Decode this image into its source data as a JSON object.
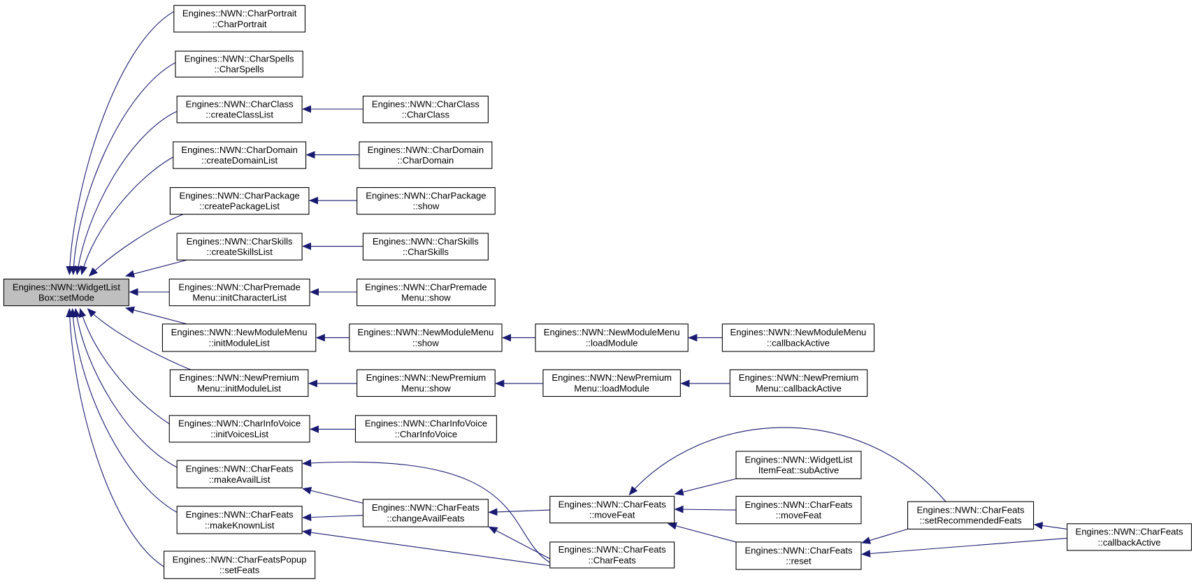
{
  "nodes": [
    {
      "lines": [
        "Engines::NWN::WidgetList",
        "Box::setMode"
      ]
    },
    {
      "lines": [
        "Engines::NWN::CharPortrait",
        "::CharPortrait"
      ]
    },
    {
      "lines": [
        "Engines::NWN::CharSpells",
        "::CharSpells"
      ]
    },
    {
      "lines": [
        "Engines::NWN::CharClass",
        "::createClassList"
      ]
    },
    {
      "lines": [
        "Engines::NWN::CharDomain",
        "::createDomainList"
      ]
    },
    {
      "lines": [
        "Engines::NWN::CharPackage",
        "::createPackageList"
      ]
    },
    {
      "lines": [
        "Engines::NWN::CharSkills",
        "::createSkillsList"
      ]
    },
    {
      "lines": [
        "Engines::NWN::CharPremade",
        "Menu::initCharacterList"
      ]
    },
    {
      "lines": [
        "Engines::NWN::NewModuleMenu",
        "::initModuleList"
      ]
    },
    {
      "lines": [
        "Engines::NWN::NewPremium",
        "Menu::initModuleList"
      ]
    },
    {
      "lines": [
        "Engines::NWN::CharInfoVoice",
        "::initVoicesList"
      ]
    },
    {
      "lines": [
        "Engines::NWN::CharFeats",
        "::makeAvailList"
      ]
    },
    {
      "lines": [
        "Engines::NWN::CharFeats",
        "::makeKnownList"
      ]
    },
    {
      "lines": [
        "Engines::NWN::CharFeatsPopup",
        "::setFeats"
      ]
    },
    {
      "lines": [
        "Engines::NWN::CharClass",
        "::CharClass"
      ]
    },
    {
      "lines": [
        "Engines::NWN::CharDomain",
        "::CharDomain"
      ]
    },
    {
      "lines": [
        "Engines::NWN::CharPackage",
        "::show"
      ]
    },
    {
      "lines": [
        "Engines::NWN::CharSkills",
        "::CharSkills"
      ]
    },
    {
      "lines": [
        "Engines::NWN::CharPremade",
        "Menu::show"
      ]
    },
    {
      "lines": [
        "Engines::NWN::NewModuleMenu",
        "::show"
      ]
    },
    {
      "lines": [
        "Engines::NWN::NewPremium",
        "Menu::show"
      ]
    },
    {
      "lines": [
        "Engines::NWN::CharInfoVoice",
        "::CharInfoVoice"
      ]
    },
    {
      "lines": [
        "Engines::NWN::CharFeats",
        "::changeAvailFeats"
      ]
    },
    {
      "lines": [
        "Engines::NWN::NewModuleMenu",
        "::loadModule"
      ]
    },
    {
      "lines": [
        "Engines::NWN::NewPremium",
        "Menu::loadModule"
      ]
    },
    {
      "lines": [
        "Engines::NWN::CharFeats",
        "::moveFeat"
      ]
    },
    {
      "lines": [
        "Engines::NWN::CharFeats",
        "::CharFeats"
      ]
    },
    {
      "lines": [
        "Engines::NWN::NewModuleMenu",
        "::callbackActive"
      ]
    },
    {
      "lines": [
        "Engines::NWN::NewPremium",
        "Menu::callbackActive"
      ]
    },
    {
      "lines": [
        "Engines::NWN::WidgetList",
        "ItemFeat::subActive"
      ]
    },
    {
      "lines": [
        "Engines::NWN::CharFeats",
        "::moveFeat"
      ]
    },
    {
      "lines": [
        "Engines::NWN::CharFeats",
        "::reset"
      ]
    },
    {
      "lines": [
        "Engines::NWN::CharFeats",
        "::setRecommendedFeats"
      ]
    },
    {
      "lines": [
        "Engines::NWN::CharFeats",
        "::callbackActive"
      ]
    }
  ]
}
